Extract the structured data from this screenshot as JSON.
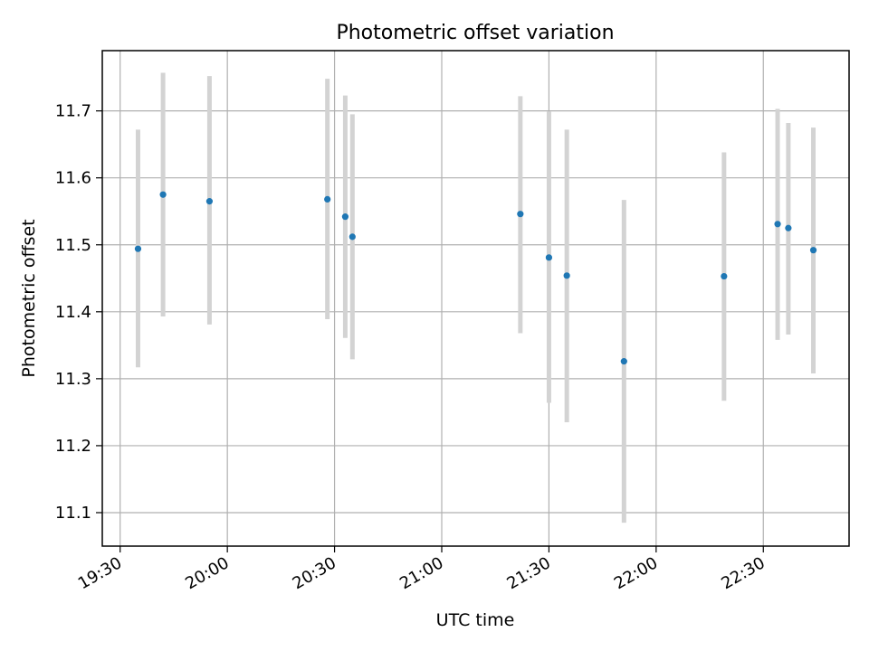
{
  "chart_data": {
    "type": "scatter",
    "title": "Photometric offset variation",
    "xlabel": "UTC time",
    "ylabel": "Photometric offset",
    "x_ticks": [
      "19:30",
      "20:00",
      "20:30",
      "21:00",
      "21:30",
      "22:00",
      "22:30"
    ],
    "y_ticks": [
      "11.1",
      "11.2",
      "11.3",
      "11.4",
      "11.5",
      "11.6",
      "11.7"
    ],
    "xlim": [
      "19:25",
      "22:54"
    ],
    "ylim": [
      11.05,
      11.79
    ],
    "grid": true,
    "errorbar_color": "#d3d3d3",
    "marker_color": "#1f77b4",
    "points": [
      {
        "time": "19:35",
        "y": 11.494,
        "ylow": 11.317,
        "yhigh": 11.672
      },
      {
        "time": "19:42",
        "y": 11.575,
        "ylow": 11.393,
        "yhigh": 11.757
      },
      {
        "time": "19:55",
        "y": 11.565,
        "ylow": 11.381,
        "yhigh": 11.752
      },
      {
        "time": "20:28",
        "y": 11.568,
        "ylow": 11.389,
        "yhigh": 11.748
      },
      {
        "time": "20:33",
        "y": 11.542,
        "ylow": 11.361,
        "yhigh": 11.723
      },
      {
        "time": "20:35",
        "y": 11.512,
        "ylow": 11.329,
        "yhigh": 11.695
      },
      {
        "time": "21:22",
        "y": 11.546,
        "ylow": 11.368,
        "yhigh": 11.722
      },
      {
        "time": "21:30",
        "y": 11.481,
        "ylow": 11.264,
        "yhigh": 11.699
      },
      {
        "time": "21:35",
        "y": 11.454,
        "ylow": 11.235,
        "yhigh": 11.672
      },
      {
        "time": "21:51",
        "y": 11.326,
        "ylow": 11.085,
        "yhigh": 11.567
      },
      {
        "time": "22:19",
        "y": 11.453,
        "ylow": 11.267,
        "yhigh": 11.638
      },
      {
        "time": "22:34",
        "y": 11.531,
        "ylow": 11.358,
        "yhigh": 11.703
      },
      {
        "time": "22:37",
        "y": 11.525,
        "ylow": 11.366,
        "yhigh": 11.682
      },
      {
        "time": "22:44",
        "y": 11.492,
        "ylow": 11.308,
        "yhigh": 11.675
      }
    ]
  }
}
